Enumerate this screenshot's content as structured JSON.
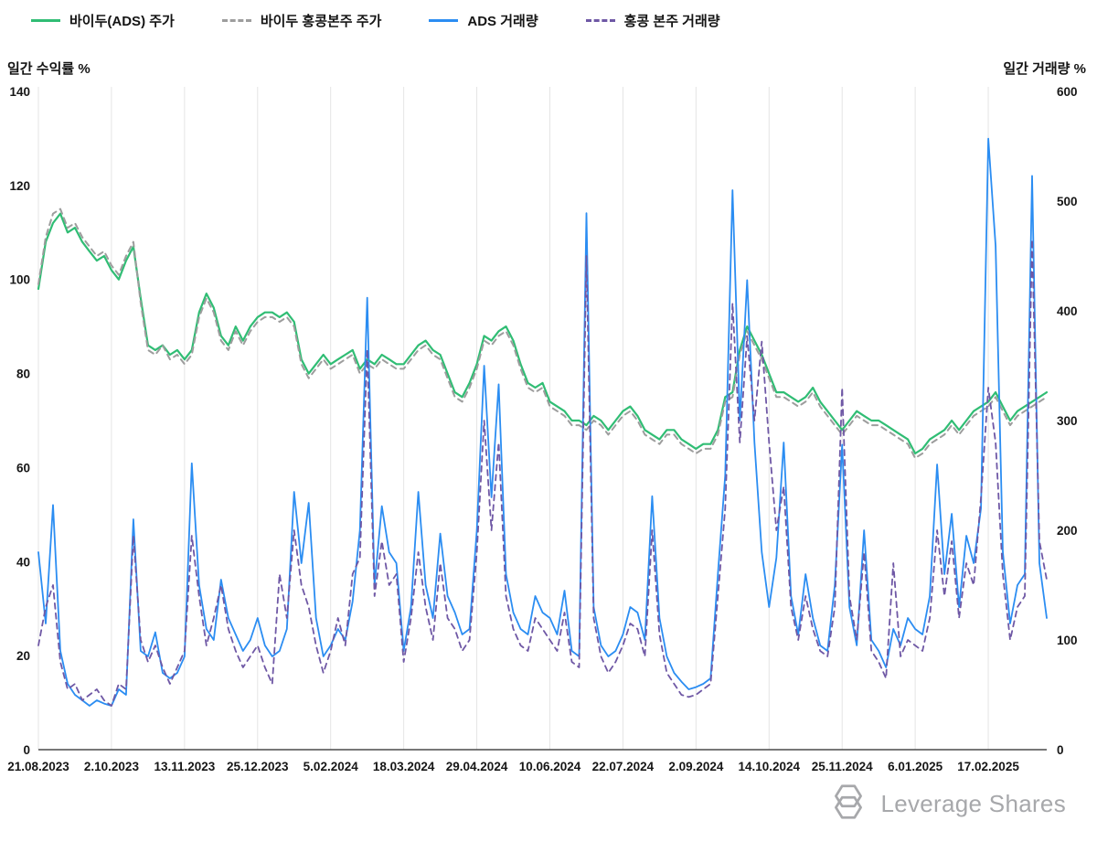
{
  "logo": {
    "text": "Leverage Shares"
  },
  "chart_data": {
    "type": "line",
    "title": "",
    "grid": "vertical-only",
    "legend_position": "top-left",
    "x_axis": {
      "start": 0,
      "step": 0.1,
      "count": 139,
      "tick_positions": [
        0,
        1,
        2,
        3,
        4,
        5,
        6,
        7,
        8,
        9,
        10,
        11,
        12,
        13
      ],
      "tick_labels": [
        "21.08.2023",
        "2.10.2023",
        "13.11.2023",
        "25.12.2023",
        "5.02.2024",
        "18.03.2024",
        "29.04.2024",
        "10.06.2024",
        "22.07.2024",
        "2.09.2024",
        "14.10.2024",
        "25.11.2024",
        "6.01.2025",
        "17.02.2025"
      ]
    },
    "left_axis": {
      "label": "일간 수익률 %",
      "min": 0,
      "max": 140,
      "ticks": [
        0,
        20,
        40,
        60,
        80,
        100,
        120,
        140
      ]
    },
    "right_axis": {
      "label": "일간 거래량 %",
      "min": 0,
      "max": 600,
      "ticks": [
        0,
        100,
        200,
        300,
        400,
        500,
        600
      ]
    },
    "series": [
      {
        "name": "바이두(ADS) 주가",
        "color": "#30bd74",
        "dashed": false,
        "axis": "left",
        "width": 2.2,
        "values": [
          98,
          108,
          112,
          114,
          110,
          111,
          108,
          106,
          104,
          105,
          102,
          100,
          104,
          107,
          96,
          86,
          85,
          86,
          84,
          85,
          83,
          85,
          93,
          97,
          94,
          88,
          86,
          90,
          87,
          90,
          92,
          93,
          93,
          92,
          93,
          91,
          83,
          80,
          82,
          84,
          82,
          83,
          84,
          85,
          81,
          83,
          82,
          84,
          83,
          82,
          82,
          84,
          86,
          87,
          85,
          84,
          80,
          76,
          75,
          78,
          82,
          88,
          87,
          89,
          90,
          87,
          82,
          78,
          77,
          78,
          74,
          73,
          72,
          70,
          70,
          69,
          71,
          70,
          68,
          70,
          72,
          73,
          71,
          68,
          67,
          66,
          68,
          68,
          66,
          65,
          64,
          65,
          65,
          68,
          75,
          76,
          85,
          90,
          87,
          84,
          80,
          76,
          76,
          75,
          74,
          75,
          77,
          74,
          72,
          70,
          68,
          70,
          72,
          71,
          70,
          70,
          69,
          68,
          67,
          66,
          63,
          64,
          66,
          67,
          68,
          70,
          68,
          70,
          72,
          73,
          74,
          76,
          73,
          70,
          72,
          73,
          74,
          75,
          76
        ]
      },
      {
        "name": "바이두 홍콩본주 주가",
        "color": "#9d9d9d",
        "dashed": true,
        "axis": "left",
        "width": 2,
        "values": [
          99,
          109,
          114,
          115,
          111,
          112,
          109,
          107,
          105,
          106,
          103,
          101,
          105,
          108,
          95,
          85,
          84,
          86,
          83,
          84,
          82,
          84,
          92,
          96,
          93,
          87,
          85,
          89,
          86,
          89,
          91,
          92,
          92,
          91,
          92,
          90,
          82,
          79,
          81,
          83,
          81,
          82,
          83,
          84,
          80,
          82,
          81,
          83,
          82,
          81,
          81,
          83,
          85,
          86,
          84,
          83,
          79,
          75,
          74,
          77,
          81,
          87,
          86,
          88,
          89,
          86,
          81,
          77,
          76,
          77,
          73,
          72,
          71,
          69,
          69,
          68,
          70,
          69,
          67,
          69,
          71,
          72,
          70,
          67,
          66,
          65,
          67,
          67,
          65,
          64,
          63,
          64,
          64,
          67,
          74,
          75,
          84,
          89,
          86,
          83,
          79,
          75,
          75,
          74,
          73,
          74,
          76,
          73,
          71,
          69,
          67,
          69,
          71,
          70,
          69,
          69,
          68,
          67,
          66,
          65,
          62,
          63,
          65,
          66,
          67,
          69,
          67,
          69,
          71,
          72,
          73,
          75,
          72,
          69,
          71,
          72,
          73,
          74,
          75
        ]
      },
      {
        "name": "ADS 거래량",
        "color": "#2b8df2",
        "dashed": false,
        "axis": "right",
        "width": 1.8,
        "values": [
          180,
          115,
          223,
          90,
          60,
          50,
          45,
          40,
          45,
          42,
          40,
          55,
          50,
          210,
          90,
          85,
          107,
          70,
          65,
          70,
          85,
          261,
          150,
          110,
          100,
          155,
          120,
          105,
          90,
          100,
          120,
          95,
          85,
          90,
          110,
          235,
          170,
          225,
          120,
          85,
          95,
          110,
          100,
          135,
          200,
          412,
          150,
          222,
          180,
          170,
          90,
          130,
          235,
          150,
          120,
          197,
          140,
          125,
          105,
          110,
          200,
          350,
          230,
          333,
          160,
          125,
          110,
          105,
          140,
          125,
          120,
          105,
          145,
          90,
          85,
          489,
          130,
          95,
          85,
          90,
          105,
          130,
          125,
          100,
          231,
          120,
          85,
          70,
          62,
          55,
          57,
          60,
          65,
          160,
          250,
          510,
          300,
          428,
          280,
          180,
          130,
          175,
          280,
          140,
          105,
          160,
          120,
          95,
          90,
          150,
          278,
          130,
          95,
          200,
          100,
          90,
          75,
          110,
          95,
          120,
          110,
          105,
          140,
          260,
          160,
          215,
          130,
          195,
          170,
          220,
          557,
          459,
          180,
          115,
          150,
          160,
          523,
          170,
          120
        ]
      },
      {
        "name": "홍콩 본주 거래량",
        "color": "#6f58a5",
        "dashed": true,
        "axis": "right",
        "width": 1.8,
        "values": [
          95,
          130,
          150,
          80,
          55,
          60,
          45,
          50,
          55,
          45,
          40,
          60,
          55,
          195,
          100,
          80,
          95,
          75,
          60,
          75,
          90,
          195,
          140,
          95,
          120,
          150,
          110,
          90,
          75,
          85,
          95,
          75,
          60,
          160,
          120,
          200,
          150,
          130,
          95,
          70,
          90,
          120,
          95,
          160,
          175,
          365,
          140,
          190,
          150,
          160,
          80,
          120,
          180,
          130,
          100,
          170,
          120,
          110,
          90,
          100,
          180,
          300,
          200,
          280,
          140,
          110,
          95,
          90,
          120,
          110,
          100,
          90,
          125,
          80,
          75,
          450,
          120,
          85,
          70,
          80,
          95,
          115,
          110,
          85,
          200,
          105,
          70,
          60,
          50,
          48,
          50,
          55,
          60,
          140,
          220,
          407,
          280,
          377,
          300,
          372,
          280,
          200,
          240,
          130,
          100,
          140,
          110,
          90,
          85,
          130,
          330,
          140,
          100,
          180,
          90,
          80,
          65,
          170,
          85,
          100,
          95,
          90,
          120,
          200,
          140,
          190,
          120,
          170,
          150,
          230,
          330,
          280,
          160,
          100,
          130,
          140,
          465,
          190,
          155
        ]
      }
    ]
  }
}
